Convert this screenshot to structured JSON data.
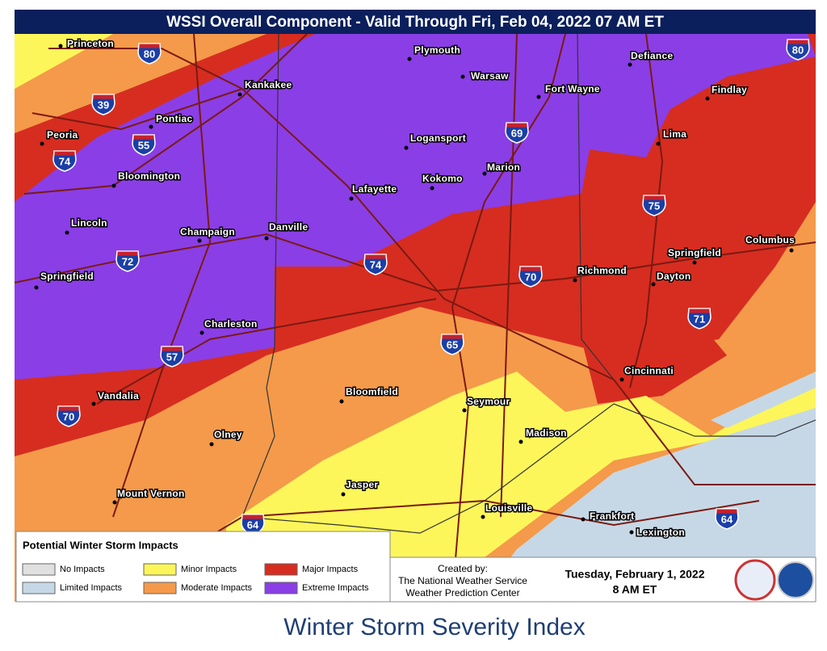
{
  "title": "WSSI Overall Component - Valid Through Fri, Feb 04, 2022 07 AM ET",
  "cities": [
    "Princeton",
    "Plymouth",
    "Warsaw",
    "Defiance",
    "Kankakee",
    "Fort Wayne",
    "Findlay",
    "Pontiac",
    "Peoria",
    "Logansport",
    "Lima",
    "Marion",
    "Bloomington",
    "Kokomo",
    "Lafayette",
    "Lincoln",
    "Champaign",
    "Danville",
    "Columbus",
    "Springfield",
    "Richmond",
    "Dayton",
    "Springfield",
    "Charleston",
    "Cincinnati",
    "Vandalia",
    "Bloomfield",
    "Seymour",
    "Madison",
    "Olney",
    "Jasper",
    "Mount Vernon",
    "Louisville",
    "Frankfort",
    "Lexington"
  ],
  "interstates": [
    "80",
    "80",
    "39",
    "69",
    "55",
    "74",
    "75",
    "72",
    "74",
    "70",
    "71",
    "65",
    "57",
    "70",
    "64",
    "64"
  ],
  "legend": {
    "title": "Potential Winter Storm Impacts",
    "items": [
      {
        "label": "No Impacts",
        "color": "#e0e0e0"
      },
      {
        "label": "Minor Impacts",
        "color": "#fdf65a"
      },
      {
        "label": "Major Impacts",
        "color": "#d62d20"
      },
      {
        "label": "Limited Impacts",
        "color": "#c6d8e6"
      },
      {
        "label": "Moderate Impacts",
        "color": "#f49a4a"
      },
      {
        "label": "Extreme Impacts",
        "color": "#8a3ee6"
      }
    ]
  },
  "credits": [
    "Created by:",
    "The National Weather Service",
    "Weather Prediction Center"
  ],
  "issued": {
    "date": "Tuesday, February 1, 2022",
    "time": "8 AM ET"
  },
  "caption": "Winter Storm Severity Index"
}
